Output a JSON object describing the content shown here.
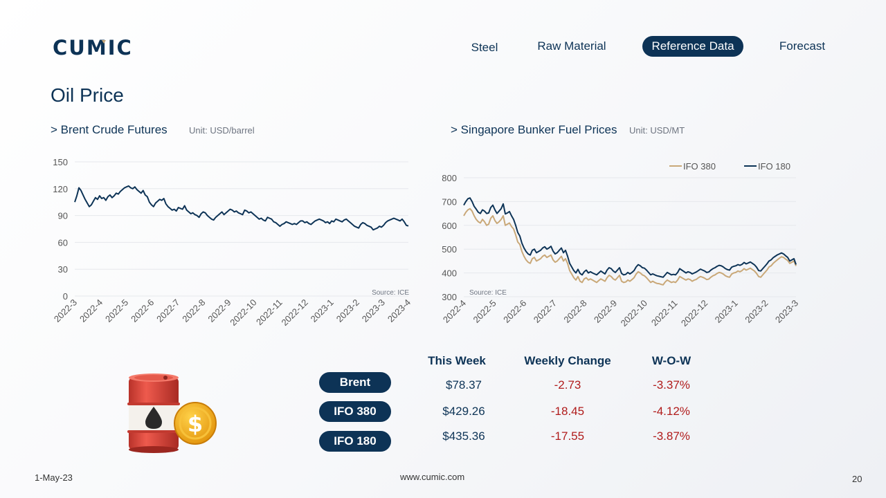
{
  "logo": {
    "text": "CUMIC"
  },
  "nav": {
    "items": [
      "Steel",
      "Raw Material",
      "Reference Data",
      "Forecast"
    ],
    "active": "Reference Data"
  },
  "page": {
    "title": "Oil Price"
  },
  "brent_section": {
    "title": "> Brent Crude Futures",
    "unit": "Unit: USD/barrel",
    "source": "Source: ICE"
  },
  "bunker_section": {
    "title": "> Singapore Bunker Fuel Prices",
    "unit": "Unit: USD/MT",
    "source": "Source: ICE"
  },
  "table": {
    "headers": [
      "This Week",
      "Weekly Change",
      "W-O-W"
    ],
    "rows": [
      {
        "name": "Brent",
        "price": "$78.37",
        "change": "-2.73",
        "wow": "-3.37%"
      },
      {
        "name": "IFO 380",
        "price": "$429.26",
        "change": "-18.45",
        "wow": "-4.12%"
      },
      {
        "name": "IFO 180",
        "price": "$435.36",
        "change": "-17.55",
        "wow": "-3.87%"
      }
    ]
  },
  "footer": {
    "date": "1-May-23",
    "website": "www.cumic.com",
    "page_number": "20"
  },
  "colors": {
    "navy": "#0d3356",
    "gold": "#c9a878",
    "negative": "#b01b1b"
  },
  "chart_data": [
    {
      "type": "line",
      "title": "> Brent Crude Futures",
      "ylabel": "Unit: USD/barrel",
      "ylim": [
        0,
        150
      ],
      "yticks": [
        0,
        30,
        60,
        90,
        120,
        150
      ],
      "x_ticks": [
        "2022-3",
        "2022-4",
        "2022-5",
        "2022-6",
        "2022-7",
        "2022-8",
        "2022-9",
        "2022-10",
        "2022-11",
        "2022-12",
        "2023-1",
        "2023-2",
        "2023-3",
        "2023-4"
      ],
      "grid": true,
      "series": [
        {
          "color": "#0d3356",
          "values": [
            105,
            112,
            121,
            118,
            113,
            108,
            104,
            100,
            102,
            106,
            110,
            108,
            112,
            109,
            110,
            107,
            111,
            113,
            110,
            112,
            115,
            114,
            117,
            119,
            121,
            122,
            123,
            121,
            120,
            122,
            119,
            117,
            115,
            118,
            113,
            111,
            105,
            102,
            100,
            104,
            106,
            108,
            107,
            109,
            103,
            100,
            98,
            96,
            97,
            95,
            99,
            98,
            97,
            101,
            96,
            94,
            92,
            93,
            91,
            90,
            88,
            92,
            94,
            93,
            90,
            88,
            86,
            85,
            88,
            90,
            92,
            94,
            91,
            93,
            95,
            97,
            96,
            94,
            95,
            93,
            92,
            91,
            96,
            95,
            93,
            94,
            92,
            90,
            88,
            86,
            87,
            85,
            84,
            88,
            87,
            86,
            83,
            82,
            80,
            78,
            80,
            81,
            83,
            82,
            81,
            80,
            81,
            80,
            82,
            84,
            84,
            82,
            83,
            81,
            80,
            82,
            84,
            85,
            86,
            85,
            84,
            82,
            83,
            81,
            84,
            83,
            86,
            85,
            84,
            83,
            85,
            86,
            84,
            82,
            80,
            78,
            77,
            76,
            80,
            82,
            81,
            79,
            78,
            77,
            74,
            75,
            76,
            78,
            77,
            79,
            82,
            84,
            85,
            86,
            87,
            86,
            85,
            84,
            86,
            83,
            79,
            78.37
          ]
        }
      ]
    },
    {
      "type": "line",
      "title": "> Singapore Bunker Fuel Prices",
      "ylabel": "Unit: USD/MT",
      "ylim": [
        300,
        800
      ],
      "yticks": [
        300,
        400,
        500,
        600,
        700,
        800
      ],
      "x_ticks": [
        "2022-4",
        "2022-5",
        "2022-6",
        "2022-7",
        "2022-8",
        "2022-9",
        "2022-10",
        "2022-11",
        "2022-12",
        "2023-1",
        "2023-2",
        "2023-3"
      ],
      "grid": true,
      "legend_position": "top-right",
      "series": [
        {
          "name": "IFO 380",
          "color": "#c9a878",
          "values": [
            640,
            655,
            665,
            670,
            660,
            640,
            625,
            615,
            610,
            625,
            615,
            600,
            605,
            630,
            640,
            620,
            608,
            615,
            625,
            640,
            600,
            605,
            610,
            595,
            585,
            560,
            530,
            520,
            490,
            470,
            455,
            445,
            440,
            460,
            465,
            450,
            455,
            460,
            470,
            475,
            465,
            470,
            475,
            455,
            445,
            450,
            460,
            470,
            450,
            460,
            440,
            410,
            395,
            380,
            370,
            385,
            365,
            360,
            375,
            380,
            370,
            375,
            370,
            365,
            360,
            368,
            375,
            370,
            365,
            380,
            390,
            385,
            375,
            370,
            380,
            390,
            365,
            360,
            362,
            370,
            365,
            372,
            380,
            395,
            405,
            400,
            392,
            388,
            380,
            370,
            360,
            365,
            360,
            356,
            355,
            352,
            350,
            362,
            370,
            365,
            360,
            363,
            360,
            370,
            385,
            380,
            375,
            370,
            375,
            372,
            365,
            370,
            373,
            380,
            385,
            382,
            378,
            372,
            374,
            382,
            388,
            392,
            398,
            402,
            400,
            395,
            388,
            384,
            382,
            395,
            400,
            402,
            408,
            405,
            410,
            418,
            412,
            416,
            420,
            414,
            408,
            398,
            385,
            382,
            392,
            402,
            412,
            425,
            430,
            440,
            448,
            455,
            462,
            468,
            465,
            458,
            452,
            440,
            445,
            450,
            429.26
          ]
        },
        {
          "name": "IFO 180",
          "color": "#0d3356",
          "values": [
            685,
            700,
            712,
            715,
            700,
            680,
            668,
            655,
            650,
            665,
            660,
            650,
            652,
            675,
            685,
            665,
            650,
            660,
            670,
            690,
            648,
            652,
            658,
            640,
            625,
            600,
            570,
            555,
            525,
            505,
            490,
            480,
            475,
            495,
            500,
            485,
            490,
            495,
            505,
            510,
            500,
            505,
            512,
            492,
            480,
            485,
            495,
            505,
            485,
            495,
            470,
            440,
            425,
            410,
            400,
            415,
            398,
            392,
            405,
            412,
            400,
            405,
            400,
            396,
            392,
            400,
            408,
            402,
            396,
            412,
            422,
            418,
            408,
            402,
            412,
            422,
            398,
            392,
            394,
            402,
            396,
            402,
            410,
            425,
            435,
            430,
            422,
            420,
            412,
            402,
            392,
            396,
            392,
            388,
            386,
            384,
            382,
            392,
            402,
            397,
            392,
            394,
            392,
            402,
            418,
            412,
            406,
            400,
            405,
            402,
            396,
            400,
            404,
            410,
            416,
            412,
            408,
            402,
            404,
            412,
            418,
            422,
            428,
            432,
            430,
            425,
            418,
            414,
            412,
            424,
            428,
            430,
            435,
            432,
            436,
            444,
            438,
            442,
            446,
            440,
            434,
            424,
            410,
            408,
            418,
            428,
            438,
            450,
            455,
            464,
            470,
            476,
            480,
            484,
            480,
            472,
            465,
            450,
            455,
            460,
            435.36
          ]
        }
      ]
    }
  ]
}
